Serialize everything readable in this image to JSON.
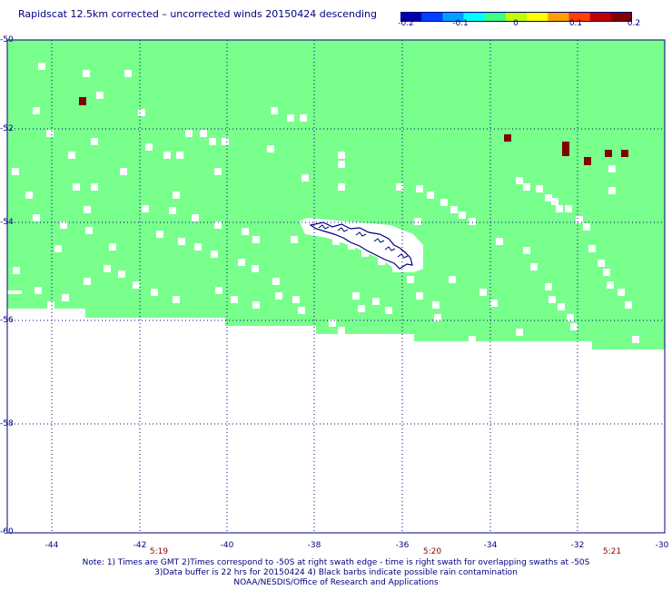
{
  "title": "Rapidscat 12.5km corrected – uncorrected winds 20150424 descending",
  "colorbar": {
    "ticks": [
      "-0.2",
      "-0.1",
      "0",
      "0.1",
      "0.2"
    ],
    "colors": [
      "#0000aa",
      "#0040ff",
      "#00a0ff",
      "#00ffff",
      "#40ff80",
      "#c0ff00",
      "#ffff00",
      "#ffa000",
      "#ff4000",
      "#c00000",
      "#800000"
    ]
  },
  "map": {
    "lon_range": [
      -45.0,
      -30.0
    ],
    "lat_range": [
      -60.0,
      -50.0
    ],
    "y_ticks": [
      "-50",
      "-52",
      "-54",
      "-56",
      "-58",
      "-60"
    ],
    "x_ticks": [
      "-44",
      "-42",
      "-40",
      "-38",
      "-36",
      "-34",
      "-32",
      "-30"
    ],
    "land_name": "South Georgia",
    "swath_color": "#78ff8c",
    "land_color": "#000080",
    "anomaly_color": "#800000",
    "grid": "dotted"
  },
  "time_labels": [
    {
      "text": "5:19",
      "lon": -41.6
    },
    {
      "text": "5:20",
      "lon": -35.4
    },
    {
      "text": "5:21",
      "lon": -31.3
    }
  ],
  "notes": {
    "line1": "Note: 1) Times are GMT 2)Times correspond to -50S at right swath edge - time is right swath for overlapping swaths at -50S",
    "line2": "3)Data buffer is 22 hrs for 20150424 4) Black barbs indicate possible rain contamination",
    "line3": "NOAA/NESDIS/Office of Research and Applications"
  }
}
